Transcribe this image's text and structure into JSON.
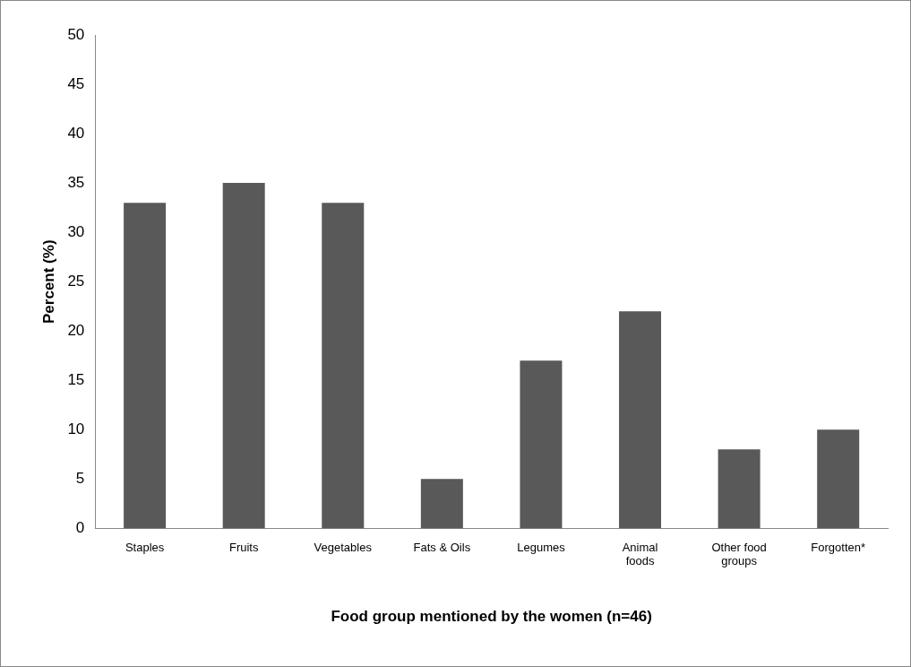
{
  "chart_data": {
    "type": "bar",
    "xlabel": "Food group mentioned by the women (n=46)",
    "ylabel": "Percent (%)",
    "categories": [
      "Staples",
      "Fruits",
      "Vegetables",
      "Fats & Oils",
      "Legumes",
      "Animal foods",
      "Other food groups",
      "Forgotten*"
    ],
    "values": [
      33,
      35,
      33,
      5,
      17,
      22,
      8,
      10
    ],
    "color": "#595959",
    "ylim": [
      0,
      50
    ],
    "yticks": [
      0,
      5,
      10,
      15,
      20,
      25,
      30,
      35,
      40,
      45,
      50
    ],
    "grid": false,
    "legend": false
  }
}
